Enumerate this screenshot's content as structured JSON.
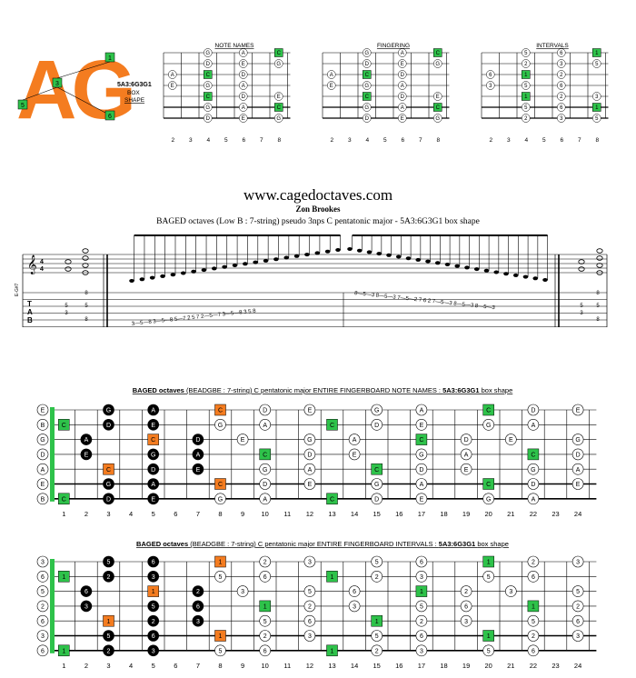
{
  "logo": {
    "letters": "AG",
    "code": "5A3:6G3G1",
    "shape_line1": "BOX",
    "shape_line2": "SHAPE",
    "markers": [
      "1",
      "3",
      "5",
      "6"
    ]
  },
  "small_diagrams": [
    {
      "title": "NOTE NAMES",
      "cells": [
        [
          "G",
          "A",
          "C"
        ],
        [
          "D",
          "E",
          "G"
        ],
        [
          "A",
          "C",
          "D"
        ],
        [
          "E",
          "G",
          "A"
        ],
        [
          "C",
          "D",
          "E"
        ],
        [
          "G",
          "A",
          "C"
        ],
        [
          "D",
          "E",
          "G"
        ]
      ]
    },
    {
      "title": "FINGERING",
      "cells": [
        [
          "G",
          "A",
          "C"
        ],
        [
          "D",
          "E",
          "G"
        ],
        [
          "A",
          "C",
          "D"
        ],
        [
          "E",
          "G",
          "A"
        ],
        [
          "C",
          "D",
          "E"
        ],
        [
          "G",
          "A",
          "C"
        ],
        [
          "D",
          "E",
          "G"
        ]
      ]
    },
    {
      "title": "INTERVALS",
      "cells": [
        [
          "5",
          "6",
          "1"
        ],
        [
          "2",
          "3",
          "5"
        ],
        [
          "6",
          "1",
          "2"
        ],
        [
          "3",
          "5",
          "6"
        ],
        [
          "1",
          "2",
          "3"
        ],
        [
          "5",
          "6",
          "1"
        ],
        [
          "2",
          "3",
          "5"
        ]
      ]
    }
  ],
  "small_fret_numbers": [
    "2",
    "3",
    "4",
    "5",
    "6",
    "7",
    "8"
  ],
  "website": "www.cagedoctaves.com",
  "author": "Zon Brookes",
  "subtitle": "BAGED octaves (Low B : 7-string) pseudo 3nps C pentatonic major - 5A3:6G3G1 box shape",
  "staff": {
    "tuning_label": "E-G#7",
    "tab_rows_left": [
      "8",
      "5",
      "5",
      "3",
      "8"
    ],
    "tab_run_up": "3—5—8  3—5—8  5—7  2  5  7  2—5—7  3—5—8  3  5  8",
    "tab_run_down": "8—5—3  8—5—3  7—5—2  7  6  2  7—5—3  8—5—3  8—5—3",
    "tab_rows_right": [
      "8",
      "5",
      "5",
      "3",
      "8"
    ]
  },
  "board_notes": {
    "title_bold": "BAGED octaves",
    "title_rest": "(BEADGBE : 7-string) C pentatonic major ENTIRE FINGERBOARD NOTE NAMES :",
    "title_shape": "5A3:6G3G1",
    "title_end": "box shape",
    "open": [
      "E",
      "B",
      "G",
      "D",
      "A",
      "E",
      "B"
    ],
    "strings": [
      [
        [
          "3",
          "G",
          "black"
        ],
        [
          "5",
          "A",
          "black"
        ],
        [
          "8",
          "C",
          "orange"
        ],
        [
          "10",
          "D",
          "white"
        ],
        [
          "12",
          "E",
          "white"
        ],
        [
          "15",
          "G",
          "white"
        ],
        [
          "17",
          "A",
          "white"
        ],
        [
          "20",
          "C",
          "green"
        ],
        [
          "22",
          "D",
          "white"
        ],
        [
          "24",
          "E",
          "white"
        ]
      ],
      [
        [
          "1",
          "C",
          "green"
        ],
        [
          "3",
          "D",
          "black"
        ],
        [
          "5",
          "E",
          "black"
        ],
        [
          "8",
          "G",
          "white"
        ],
        [
          "10",
          "A",
          "white"
        ],
        [
          "13",
          "C",
          "green"
        ],
        [
          "15",
          "D",
          "white"
        ],
        [
          "17",
          "E",
          "white"
        ],
        [
          "20",
          "G",
          "white"
        ],
        [
          "22",
          "A",
          "white"
        ]
      ],
      [
        [
          "2",
          "A",
          "black"
        ],
        [
          "5",
          "C",
          "orange"
        ],
        [
          "7",
          "D",
          "black"
        ],
        [
          "9",
          "E",
          "white"
        ],
        [
          "12",
          "G",
          "white"
        ],
        [
          "14",
          "A",
          "white"
        ],
        [
          "17",
          "C",
          "green"
        ],
        [
          "19",
          "D",
          "white"
        ],
        [
          "21",
          "E",
          "white"
        ],
        [
          "24",
          "G",
          "white"
        ]
      ],
      [
        [
          "2",
          "E",
          "black"
        ],
        [
          "5",
          "G",
          "black"
        ],
        [
          "7",
          "A",
          "black"
        ],
        [
          "10",
          "C",
          "green"
        ],
        [
          "12",
          "D",
          "white"
        ],
        [
          "14",
          "E",
          "white"
        ],
        [
          "17",
          "G",
          "white"
        ],
        [
          "19",
          "A",
          "white"
        ],
        [
          "22",
          "C",
          "green"
        ],
        [
          "24",
          "D",
          "white"
        ]
      ],
      [
        [
          "3",
          "C",
          "orange"
        ],
        [
          "5",
          "D",
          "black"
        ],
        [
          "7",
          "E",
          "black"
        ],
        [
          "10",
          "G",
          "white"
        ],
        [
          "12",
          "A",
          "white"
        ],
        [
          "15",
          "C",
          "green"
        ],
        [
          "17",
          "D",
          "white"
        ],
        [
          "19",
          "E",
          "white"
        ],
        [
          "22",
          "G",
          "white"
        ],
        [
          "24",
          "A",
          "white"
        ]
      ],
      [
        [
          "3",
          "G",
          "black"
        ],
        [
          "5",
          "A",
          "black"
        ],
        [
          "8",
          "C",
          "orange"
        ],
        [
          "10",
          "D",
          "white"
        ],
        [
          "12",
          "E",
          "white"
        ],
        [
          "15",
          "G",
          "white"
        ],
        [
          "17",
          "A",
          "white"
        ],
        [
          "20",
          "C",
          "green"
        ],
        [
          "22",
          "D",
          "white"
        ],
        [
          "24",
          "E",
          "white"
        ]
      ],
      [
        [
          "1",
          "C",
          "green"
        ],
        [
          "3",
          "D",
          "black"
        ],
        [
          "5",
          "E",
          "black"
        ],
        [
          "8",
          "G",
          "white"
        ],
        [
          "10",
          "A",
          "white"
        ],
        [
          "13",
          "C",
          "green"
        ],
        [
          "15",
          "D",
          "white"
        ],
        [
          "17",
          "E",
          "white"
        ],
        [
          "20",
          "G",
          "white"
        ],
        [
          "22",
          "A",
          "white"
        ]
      ]
    ]
  },
  "board_intervals": {
    "title_bold": "BAGED octaves",
    "title_rest": "(BEADGBE : 7-string) C pentatonic major ENTIRE FINGERBOARD INTERVALS :",
    "title_shape": "5A3:6G3G1",
    "title_end": "box shape",
    "open": [
      "3",
      "6",
      "5",
      "2",
      "6",
      "3",
      "6"
    ],
    "strings": [
      [
        [
          "3",
          "5",
          "black"
        ],
        [
          "5",
          "6",
          "black"
        ],
        [
          "8",
          "1",
          "orange"
        ],
        [
          "10",
          "2",
          "white"
        ],
        [
          "12",
          "3",
          "white"
        ],
        [
          "15",
          "5",
          "white"
        ],
        [
          "17",
          "6",
          "white"
        ],
        [
          "20",
          "1",
          "green"
        ],
        [
          "22",
          "2",
          "white"
        ],
        [
          "24",
          "3",
          "white"
        ]
      ],
      [
        [
          "1",
          "1",
          "green"
        ],
        [
          "3",
          "2",
          "black"
        ],
        [
          "5",
          "3",
          "black"
        ],
        [
          "8",
          "5",
          "white"
        ],
        [
          "10",
          "6",
          "white"
        ],
        [
          "13",
          "1",
          "green"
        ],
        [
          "15",
          "2",
          "white"
        ],
        [
          "17",
          "3",
          "white"
        ],
        [
          "20",
          "5",
          "white"
        ],
        [
          "22",
          "6",
          "white"
        ]
      ],
      [
        [
          "2",
          "6",
          "black"
        ],
        [
          "5",
          "1",
          "orange"
        ],
        [
          "7",
          "2",
          "black"
        ],
        [
          "9",
          "3",
          "white"
        ],
        [
          "12",
          "5",
          "white"
        ],
        [
          "14",
          "6",
          "white"
        ],
        [
          "17",
          "1",
          "green"
        ],
        [
          "19",
          "2",
          "white"
        ],
        [
          "21",
          "3",
          "white"
        ],
        [
          "24",
          "5",
          "white"
        ]
      ],
      [
        [
          "2",
          "3",
          "black"
        ],
        [
          "5",
          "5",
          "black"
        ],
        [
          "7",
          "6",
          "black"
        ],
        [
          "10",
          "1",
          "green"
        ],
        [
          "12",
          "2",
          "white"
        ],
        [
          "14",
          "3",
          "white"
        ],
        [
          "17",
          "5",
          "white"
        ],
        [
          "19",
          "6",
          "white"
        ],
        [
          "22",
          "1",
          "green"
        ],
        [
          "24",
          "2",
          "white"
        ]
      ],
      [
        [
          "3",
          "1",
          "orange"
        ],
        [
          "5",
          "2",
          "black"
        ],
        [
          "7",
          "3",
          "black"
        ],
        [
          "10",
          "5",
          "white"
        ],
        [
          "12",
          "6",
          "white"
        ],
        [
          "15",
          "1",
          "green"
        ],
        [
          "17",
          "2",
          "white"
        ],
        [
          "19",
          "3",
          "white"
        ],
        [
          "22",
          "5",
          "white"
        ],
        [
          "24",
          "6",
          "white"
        ]
      ],
      [
        [
          "3",
          "5",
          "black"
        ],
        [
          "5",
          "6",
          "black"
        ],
        [
          "8",
          "1",
          "orange"
        ],
        [
          "10",
          "2",
          "white"
        ],
        [
          "12",
          "3",
          "white"
        ],
        [
          "15",
          "5",
          "white"
        ],
        [
          "17",
          "6",
          "white"
        ],
        [
          "20",
          "1",
          "green"
        ],
        [
          "22",
          "2",
          "white"
        ],
        [
          "24",
          "3",
          "white"
        ]
      ],
      [
        [
          "1",
          "1",
          "green"
        ],
        [
          "3",
          "2",
          "black"
        ],
        [
          "5",
          "3",
          "black"
        ],
        [
          "8",
          "5",
          "white"
        ],
        [
          "10",
          "6",
          "white"
        ],
        [
          "13",
          "1",
          "green"
        ],
        [
          "15",
          "2",
          "white"
        ],
        [
          "17",
          "3",
          "white"
        ],
        [
          "20",
          "5",
          "white"
        ],
        [
          "22",
          "6",
          "white"
        ]
      ]
    ]
  },
  "board_fret_numbers": [
    "1",
    "2",
    "3",
    "4",
    "5",
    "6",
    "7",
    "8",
    "9",
    "10",
    "11",
    "12",
    "13",
    "14",
    "15",
    "16",
    "17",
    "18",
    "19",
    "20",
    "21",
    "22",
    "23",
    "24"
  ],
  "colors": {
    "orange": "#f47c20",
    "green": "#2ec24a",
    "black": "#000000",
    "logo_orange": "#f47c20"
  }
}
